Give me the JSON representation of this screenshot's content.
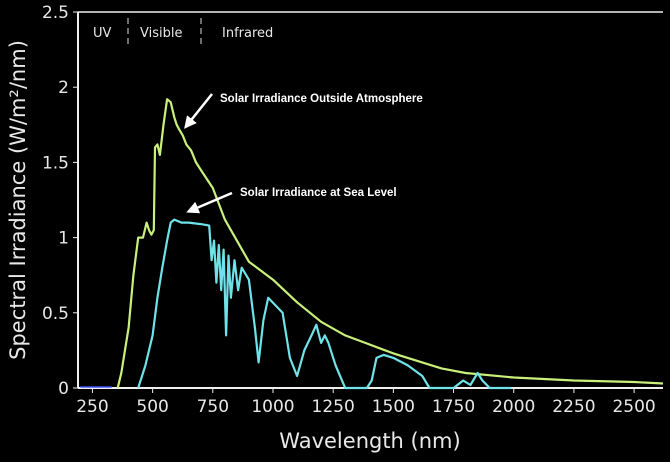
{
  "chart_data": {
    "type": "line",
    "xlabel": "Wavelength (nm)",
    "ylabel": "Spectral Irradiance (W/m²/nm)",
    "xlim": [
      190,
      2620
    ],
    "ylim": [
      0,
      2.5
    ],
    "xticks": [
      250,
      500,
      750,
      1000,
      1250,
      1500,
      1750,
      2000,
      2250,
      2500
    ],
    "yticks": [
      0,
      0.5,
      1,
      1.5,
      2,
      2.5
    ],
    "ytick_labels": [
      "0",
      "0.5",
      "1",
      "1.5",
      "2",
      "2.5"
    ],
    "grid": false,
    "regions": [
      "UV",
      "Visible",
      "Infrared"
    ],
    "region_boundaries": [
      400,
      700
    ],
    "series": [
      {
        "name": "Solar Irradiance Outside Atmosphere",
        "color": "#c8f07a",
        "x": [
          355,
          370,
          400,
          420,
          440,
          460,
          475,
          485,
          495,
          505,
          510,
          520,
          530,
          545,
          560,
          575,
          590,
          600,
          610,
          625,
          640,
          660,
          680,
          700,
          750,
          800,
          900,
          1000,
          1100,
          1200,
          1300,
          1400,
          1500,
          1600,
          1700,
          1800,
          2000,
          2250,
          2500,
          2620
        ],
        "y": [
          0,
          0.1,
          0.4,
          0.75,
          1.0,
          1.0,
          1.1,
          1.05,
          1.02,
          1.05,
          1.6,
          1.62,
          1.55,
          1.75,
          1.92,
          1.9,
          1.8,
          1.75,
          1.72,
          1.68,
          1.62,
          1.58,
          1.5,
          1.45,
          1.33,
          1.12,
          0.84,
          0.72,
          0.57,
          0.44,
          0.35,
          0.29,
          0.23,
          0.18,
          0.13,
          0.1,
          0.07,
          0.05,
          0.04,
          0.03
        ]
      },
      {
        "name": "Solar Irradiance at Sea Level",
        "color": "#6fe3e8",
        "x": [
          440,
          470,
          500,
          520,
          540,
          560,
          575,
          590,
          620,
          650,
          700,
          735,
          745,
          755,
          765,
          775,
          785,
          795,
          805,
          815,
          825,
          840,
          855,
          870,
          900,
          925,
          940,
          960,
          980,
          1010,
          1040,
          1070,
          1100,
          1130,
          1160,
          1180,
          1200,
          1215,
          1230,
          1260,
          1300,
          1390,
          1410,
          1430,
          1460,
          1500,
          1560,
          1620,
          1650,
          1750,
          1790,
          1820,
          1850,
          1870,
          1900,
          1990
        ],
        "y": [
          0,
          0.15,
          0.35,
          0.6,
          0.8,
          0.98,
          1.1,
          1.12,
          1.1,
          1.1,
          1.09,
          1.08,
          0.85,
          0.98,
          0.7,
          0.95,
          0.65,
          0.92,
          0.35,
          0.88,
          0.6,
          0.85,
          0.65,
          0.8,
          0.72,
          0.4,
          0.17,
          0.45,
          0.6,
          0.55,
          0.5,
          0.2,
          0.08,
          0.25,
          0.35,
          0.42,
          0.3,
          0.35,
          0.3,
          0.15,
          0,
          0,
          0.05,
          0.2,
          0.22,
          0.2,
          0.15,
          0.08,
          0,
          0,
          0.05,
          0.02,
          0.1,
          0.05,
          0,
          0
        ]
      }
    ],
    "annotations": [
      {
        "text": "Solar Irradiance Outside Atmosphere",
        "points_to": [
          600,
          1.75
        ]
      },
      {
        "text": "Solar Irradiance at Sea Level",
        "points_to": [
          610,
          1.15
        ]
      }
    ]
  }
}
